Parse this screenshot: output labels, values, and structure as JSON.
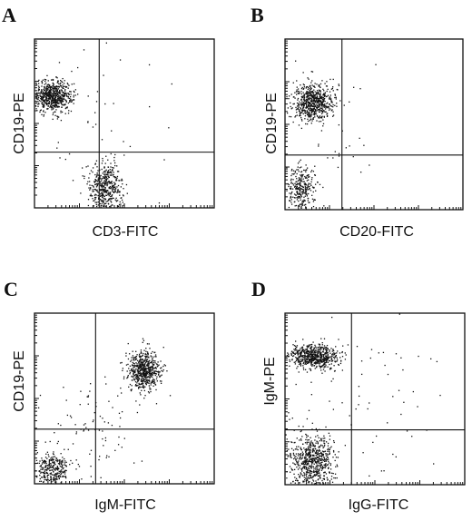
{
  "figure": {
    "panels": [
      {
        "letter": "A",
        "xlabel": "CD3-FITC",
        "ylabel": "CD19-PE"
      },
      {
        "letter": "B",
        "xlabel": "CD20-FITC",
        "ylabel": "CD19-PE"
      },
      {
        "letter": "C",
        "xlabel": "IgM-FITC",
        "ylabel": "CD19-PE"
      },
      {
        "letter": "D",
        "xlabel": "IgG-FITC",
        "ylabel": "IgM-PE"
      }
    ]
  },
  "chart_data": [
    {
      "type": "scatter",
      "title": "A",
      "xlabel": "CD3-FITC",
      "ylabel": "CD19-PE",
      "xscale": "log",
      "yscale": "log",
      "xlim": [
        0,
        1
      ],
      "ylim": [
        0,
        1
      ],
      "quadrant_gate": {
        "x": 0.36,
        "y": 0.33
      },
      "populations": [
        {
          "cx": 0.1,
          "cy": 0.66,
          "sx": 0.055,
          "sy": 0.045,
          "n": 650
        },
        {
          "cx": 0.4,
          "cy": 0.12,
          "sx": 0.045,
          "sy": 0.075,
          "n": 450
        },
        {
          "cx": 0.35,
          "cy": 0.45,
          "sx": 0.25,
          "sy": 0.3,
          "n": 55
        }
      ]
    },
    {
      "type": "scatter",
      "title": "B",
      "xlabel": "CD20-FITC",
      "ylabel": "CD19-PE",
      "xscale": "log",
      "yscale": "log",
      "xlim": [
        0,
        1
      ],
      "ylim": [
        0,
        1
      ],
      "quadrant_gate": {
        "x": 0.32,
        "y": 0.32
      },
      "populations": [
        {
          "cx": 0.16,
          "cy": 0.63,
          "sx": 0.055,
          "sy": 0.055,
          "n": 650
        },
        {
          "cx": 0.09,
          "cy": 0.12,
          "sx": 0.04,
          "sy": 0.07,
          "n": 300
        },
        {
          "cx": 0.25,
          "cy": 0.4,
          "sx": 0.15,
          "sy": 0.25,
          "n": 40
        }
      ]
    },
    {
      "type": "scatter",
      "title": "C",
      "xlabel": "IgM-FITC",
      "ylabel": "CD19-PE",
      "xscale": "log",
      "yscale": "log",
      "xlim": [
        0,
        1
      ],
      "ylim": [
        0,
        1
      ],
      "quadrant_gate": {
        "x": 0.34,
        "y": 0.32
      },
      "populations": [
        {
          "cx": 0.61,
          "cy": 0.66,
          "sx": 0.045,
          "sy": 0.06,
          "n": 600
        },
        {
          "cx": 0.1,
          "cy": 0.08,
          "sx": 0.05,
          "sy": 0.05,
          "n": 320
        },
        {
          "cx": 0.3,
          "cy": 0.32,
          "sx": 0.15,
          "sy": 0.15,
          "n": 90
        }
      ]
    },
    {
      "type": "scatter",
      "title": "D",
      "xlabel": "IgG-FITC",
      "ylabel": "IgM-PE",
      "xscale": "log",
      "yscale": "log",
      "xlim": [
        0,
        1
      ],
      "ylim": [
        0,
        1
      ],
      "quadrant_gate": {
        "x": 0.37,
        "y": 0.32
      },
      "populations": [
        {
          "cx": 0.16,
          "cy": 0.75,
          "sx": 0.065,
          "sy": 0.035,
          "n": 650
        },
        {
          "cx": 0.15,
          "cy": 0.14,
          "sx": 0.06,
          "sy": 0.08,
          "n": 650
        },
        {
          "cx": 0.38,
          "cy": 0.45,
          "sx": 0.25,
          "sy": 0.25,
          "n": 80
        }
      ]
    }
  ]
}
